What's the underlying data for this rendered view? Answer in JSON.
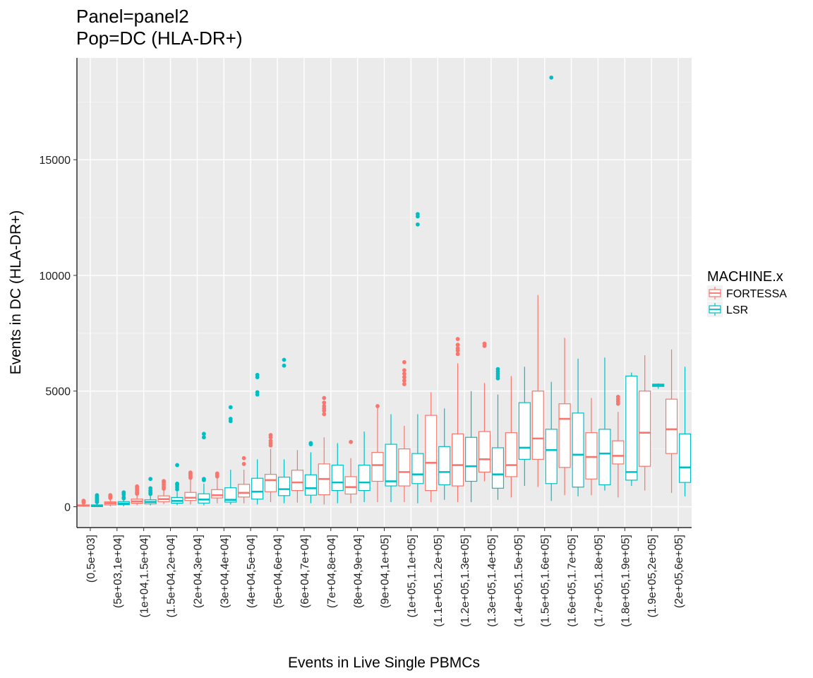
{
  "chart_data": {
    "type": "boxplot",
    "title": "Panel=panel2",
    "subtitle": "Pop=DC (HLA-DR+)",
    "xlabel": "Events in Live Single PBMCs",
    "ylabel": "Events in DC (HLA-DR+)",
    "ylim": [
      -900,
      19400
    ],
    "yticks": [
      0,
      5000,
      10000,
      15000
    ],
    "grid": true,
    "legend": {
      "title": "MACHINE.x",
      "position": "right"
    },
    "categories": [
      "(0,5e+03]",
      "(5e+03,1e+04]",
      "(1e+04,1.5e+04]",
      "(1.5e+04,2e+04]",
      "(2e+04,3e+04]",
      "(3e+04,4e+04]",
      "(4e+04,5e+04]",
      "(5e+04,6e+04]",
      "(6e+04,7e+04]",
      "(7e+04,8e+04]",
      "(8e+04,9e+04]",
      "(9e+04,1e+05]",
      "(1e+05,1.1e+05]",
      "(1.1e+05,1.2e+05]",
      "(1.2e+05,1.3e+05]",
      "(1.3e+05,1.4e+05]",
      "(1.4e+05,1.5e+05]",
      "(1.5e+05,1.6e+05]",
      "(1.6e+05,1.7e+05]",
      "(1.7e+05,1.8e+05]",
      "(1.8e+05,1.9e+05]",
      "(1.9e+05,2e+05]",
      "(2e+05,6e+05]"
    ],
    "series": [
      {
        "name": "FORTESSA",
        "color": "#F8766D",
        "boxes": [
          {
            "min": 0,
            "q1": 20,
            "median": 50,
            "q3": 80,
            "max": 150,
            "outliers": [
              180,
              220,
              260
            ]
          },
          {
            "min": 20,
            "q1": 80,
            "median": 150,
            "q3": 210,
            "max": 330,
            "outliers": [
              380,
              430,
              470,
              500
            ]
          },
          {
            "min": 60,
            "q1": 150,
            "median": 230,
            "q3": 330,
            "max": 500,
            "outliers": [
              560,
              620,
              700,
              760,
              820,
              880
            ]
          },
          {
            "min": 120,
            "q1": 220,
            "median": 330,
            "q3": 470,
            "max": 720,
            "outliers": [
              780,
              850,
              950,
              1050,
              1110
            ]
          },
          {
            "min": 100,
            "q1": 270,
            "median": 390,
            "q3": 620,
            "max": 1200,
            "outliers": [
              1250,
              1320,
              1380,
              1430,
              1480
            ]
          },
          {
            "min": 150,
            "q1": 380,
            "median": 500,
            "q3": 740,
            "max": 1250,
            "outliers": [
              1310,
              1380,
              1440
            ]
          },
          {
            "min": 150,
            "q1": 420,
            "median": 600,
            "q3": 970,
            "max": 1600,
            "outliers": [
              1850,
              2100
            ]
          },
          {
            "min": 200,
            "q1": 650,
            "median": 1150,
            "q3": 1400,
            "max": 2500,
            "outliers": [
              2650,
              2750,
              2850,
              3000,
              3100
            ]
          },
          {
            "min": 180,
            "q1": 700,
            "median": 1050,
            "q3": 1580,
            "max": 2450,
            "outliers": []
          },
          {
            "min": 100,
            "q1": 520,
            "median": 1200,
            "q3": 1850,
            "max": 3000,
            "outliers": [
              4000,
              4150,
              4250,
              4350,
              4500,
              4700
            ]
          },
          {
            "min": 150,
            "q1": 550,
            "median": 850,
            "q3": 1300,
            "max": 2100,
            "outliers": [
              2800
            ]
          },
          {
            "min": 200,
            "q1": 1100,
            "median": 1800,
            "q3": 2350,
            "max": 4300,
            "outliers": [
              4350
            ]
          },
          {
            "min": 200,
            "q1": 900,
            "median": 1500,
            "q3": 2500,
            "max": 3500,
            "outliers": [
              5300,
              5450,
              5600,
              5750,
              5900,
              6250
            ]
          },
          {
            "min": 200,
            "q1": 700,
            "median": 1900,
            "q3": 3950,
            "max": 4950,
            "outliers": []
          },
          {
            "min": 200,
            "q1": 900,
            "median": 1800,
            "q3": 3150,
            "max": 6200,
            "outliers": [
              6600,
              6750,
              6850,
              7000,
              7250
            ]
          },
          {
            "min": 1100,
            "q1": 1500,
            "median": 2050,
            "q3": 3250,
            "max": 5350,
            "outliers": [
              6950,
              7050
            ]
          },
          {
            "min": 400,
            "q1": 1300,
            "median": 1800,
            "q3": 3200,
            "max": 5650,
            "outliers": []
          },
          {
            "min": 850,
            "q1": 2050,
            "median": 2950,
            "q3": 5000,
            "max": 9150,
            "outliers": []
          },
          {
            "min": 500,
            "q1": 1700,
            "median": 3800,
            "q3": 4450,
            "max": 7300,
            "outliers": []
          },
          {
            "min": 500,
            "q1": 1200,
            "median": 2150,
            "q3": 3200,
            "max": 4700,
            "outliers": []
          },
          {
            "min": 400,
            "q1": 1850,
            "median": 2200,
            "q3": 2850,
            "max": 4100,
            "outliers": [
              4450,
              4550,
              4650,
              4750
            ]
          },
          {
            "min": 700,
            "q1": 1750,
            "median": 3200,
            "q3": 5000,
            "max": 6550,
            "outliers": []
          },
          {
            "min": 600,
            "q1": 2300,
            "median": 3350,
            "q3": 4650,
            "max": 6800,
            "outliers": []
          }
        ]
      },
      {
        "name": "LSR",
        "color": "#00BFC4",
        "boxes": [
          {
            "min": 0,
            "q1": 10,
            "median": 30,
            "q3": 80,
            "max": 160,
            "outliers": [
              200,
              250,
              300,
              350,
              400,
              450,
              500
            ]
          },
          {
            "min": 20,
            "q1": 90,
            "median": 140,
            "q3": 220,
            "max": 320,
            "outliers": [
              360,
              400,
              520,
              580,
              620
            ]
          },
          {
            "min": 60,
            "q1": 130,
            "median": 210,
            "q3": 300,
            "max": 480,
            "outliers": [
              550,
              620,
              700,
              800,
              1200
            ]
          },
          {
            "min": 70,
            "q1": 150,
            "median": 250,
            "q3": 400,
            "max": 650,
            "outliers": [
              750,
              850,
              950,
              1000,
              1800
            ]
          },
          {
            "min": 60,
            "q1": 160,
            "median": 310,
            "q3": 560,
            "max": 1000,
            "outliers": [
              1150,
              1200,
              3000,
              3150
            ]
          },
          {
            "min": 100,
            "q1": 200,
            "median": 300,
            "q3": 820,
            "max": 1600,
            "outliers": [
              3700,
              3800,
              4300
            ]
          },
          {
            "min": 100,
            "q1": 330,
            "median": 650,
            "q3": 1230,
            "max": 2050,
            "outliers": [
              4850,
              4950,
              5600,
              5700
            ]
          },
          {
            "min": 150,
            "q1": 480,
            "median": 760,
            "q3": 1280,
            "max": 2050,
            "outliers": [
              6100,
              6350
            ]
          },
          {
            "min": 150,
            "q1": 500,
            "median": 800,
            "q3": 1380,
            "max": 2350,
            "outliers": [
              2700,
              2750
            ]
          },
          {
            "min": 150,
            "q1": 700,
            "median": 1050,
            "q3": 1800,
            "max": 2750,
            "outliers": []
          },
          {
            "min": 200,
            "q1": 700,
            "median": 1050,
            "q3": 1800,
            "max": 3250,
            "outliers": []
          },
          {
            "min": 200,
            "q1": 900,
            "median": 1100,
            "q3": 2700,
            "max": 4000,
            "outliers": []
          },
          {
            "min": 150,
            "q1": 1000,
            "median": 1400,
            "q3": 2300,
            "max": 4000,
            "outliers": [
              12200,
              12550,
              12650
            ]
          },
          {
            "min": 300,
            "q1": 950,
            "median": 1500,
            "q3": 2600,
            "max": 4250,
            "outliers": []
          },
          {
            "min": 200,
            "q1": 1100,
            "median": 1750,
            "q3": 3000,
            "max": 5000,
            "outliers": []
          },
          {
            "min": 300,
            "q1": 800,
            "median": 1400,
            "q3": 2550,
            "max": 4850,
            "outliers": [
              5550,
              5650,
              5750,
              5850,
              5950
            ]
          },
          {
            "min": 900,
            "q1": 2050,
            "median": 2550,
            "q3": 4500,
            "max": 6050,
            "outliers": []
          },
          {
            "min": 250,
            "q1": 1000,
            "median": 2450,
            "q3": 3350,
            "max": 5400,
            "outliers": [
              18550
            ]
          },
          {
            "min": 450,
            "q1": 850,
            "median": 2250,
            "q3": 4050,
            "max": 6400,
            "outliers": []
          },
          {
            "min": 700,
            "q1": 950,
            "median": 2300,
            "q3": 3350,
            "max": 6450,
            "outliers": []
          },
          {
            "min": 900,
            "q1": 1150,
            "median": 1500,
            "q3": 5650,
            "max": 5800,
            "outliers": []
          },
          {
            "min": 5100,
            "q1": 5200,
            "median": 5250,
            "q3": 5300,
            "max": 5330,
            "outliers": []
          },
          {
            "min": 450,
            "q1": 1050,
            "median": 1700,
            "q3": 3150,
            "max": 6050,
            "outliers": []
          }
        ]
      }
    ]
  }
}
